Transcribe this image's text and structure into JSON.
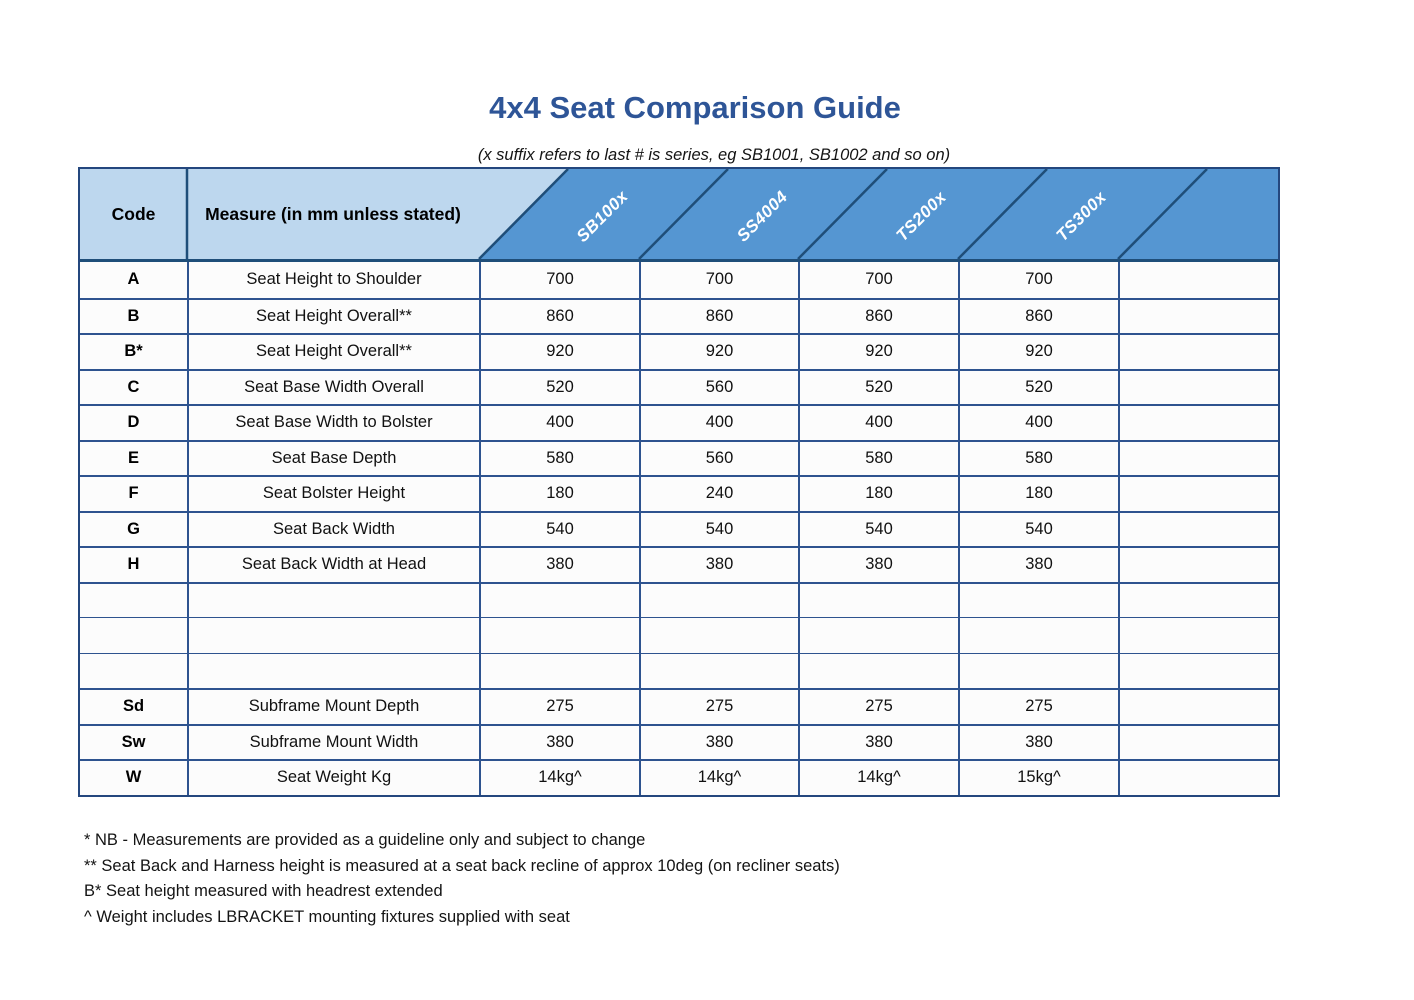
{
  "title": "4x4 Seat Comparison Guide",
  "subtitle": "(x suffix refers to last # is series, eg SB1001, SB1002 and so on)",
  "table": {
    "code_header": "Code",
    "measure_header": "Measure (in mm unless stated)",
    "products": [
      "SB100x",
      "SS4004",
      "TS200x",
      "TS300x"
    ],
    "rows": [
      {
        "code": "A",
        "measure": "Seat Height to Shoulder",
        "values": [
          "700",
          "700",
          "700",
          "700"
        ]
      },
      {
        "code": "B",
        "measure": "Seat Height Overall**",
        "values": [
          "860",
          "860",
          "860",
          "860"
        ]
      },
      {
        "code": "B*",
        "measure": "Seat Height Overall**",
        "values": [
          "920",
          "920",
          "920",
          "920"
        ]
      },
      {
        "code": "C",
        "measure": "Seat Base Width Overall",
        "values": [
          "520",
          "560",
          "520",
          "520"
        ]
      },
      {
        "code": "D",
        "measure": "Seat Base Width to Bolster",
        "values": [
          "400",
          "400",
          "400",
          "400"
        ]
      },
      {
        "code": "E",
        "measure": "Seat Base Depth",
        "values": [
          "580",
          "560",
          "580",
          "580"
        ]
      },
      {
        "code": "F",
        "measure": "Seat Bolster Height",
        "values": [
          "180",
          "240",
          "180",
          "180"
        ]
      },
      {
        "code": "G",
        "measure": "Seat Back Width",
        "values": [
          "540",
          "540",
          "540",
          "540"
        ]
      },
      {
        "code": "H",
        "measure": "Seat Back Width at Head",
        "values": [
          "380",
          "380",
          "380",
          "380"
        ]
      },
      {
        "code": "",
        "measure": "",
        "values": [
          "",
          "",
          "",
          ""
        ]
      },
      {
        "code": "",
        "measure": "",
        "values": [
          "",
          "",
          "",
          ""
        ]
      },
      {
        "code": "",
        "measure": "",
        "values": [
          "",
          "",
          "",
          ""
        ]
      },
      {
        "code": "Sd",
        "measure": "Subframe Mount Depth",
        "values": [
          "275",
          "275",
          "275",
          "275"
        ]
      },
      {
        "code": "Sw",
        "measure": "Subframe Mount Width",
        "values": [
          "380",
          "380",
          "380",
          "380"
        ]
      },
      {
        "code": "W",
        "measure": "Seat Weight Kg",
        "values": [
          "14kg^",
          "14kg^",
          "14kg^",
          "15kg^"
        ]
      }
    ]
  },
  "footnotes": [
    "* NB - Measurements are provided as a guideline only and subject to change",
    "** Seat Back and Harness height is measured at a seat back recline of approx 10deg (on recliner seats)",
    "B* Seat height measured with headrest extended",
    "^ Weight includes LBRACKET mounting fixtures supplied with seat"
  ],
  "colors": {
    "title_blue": "#2e5597",
    "header_light_blue": "#bdd7ee",
    "header_medium_blue": "#5596d2",
    "diagonal_line_navy": "#1f4e79",
    "cell_border_blue": "#2e538f"
  }
}
